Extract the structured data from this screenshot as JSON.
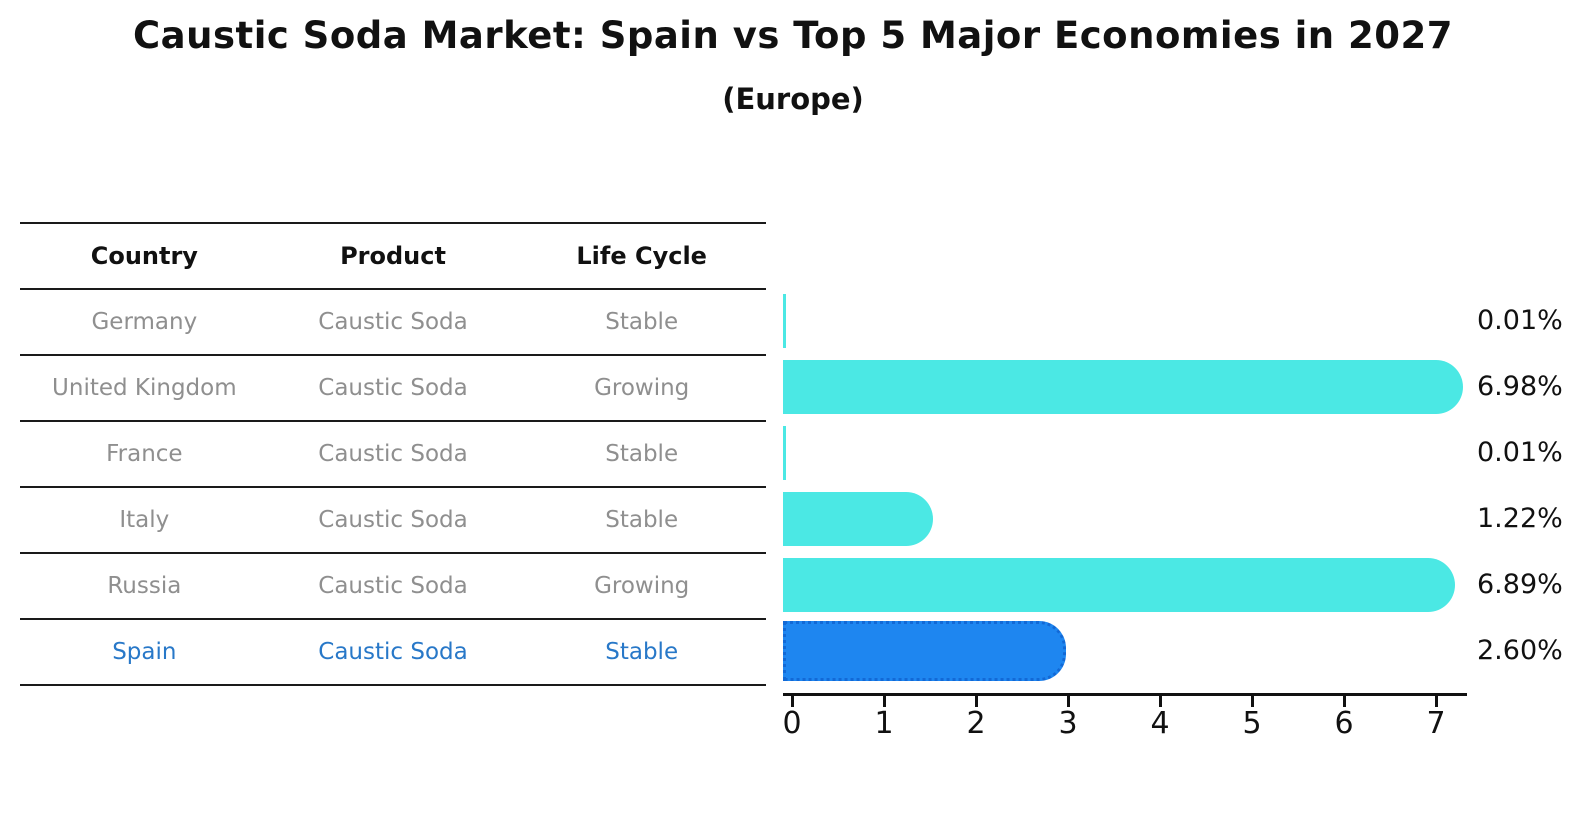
{
  "title": "Caustic Soda Market: Spain vs Top 5 Major Economies in 2027",
  "subtitle": "(Europe)",
  "table": {
    "headers": [
      "Country",
      "Product",
      "Life Cycle"
    ],
    "rows": [
      {
        "country": "Germany",
        "product": "Caustic Soda",
        "life_cycle": "Stable",
        "highlight": false
      },
      {
        "country": "United Kingdom",
        "product": "Caustic Soda",
        "life_cycle": "Growing",
        "highlight": false
      },
      {
        "country": "France",
        "product": "Caustic Soda",
        "life_cycle": "Stable",
        "highlight": false
      },
      {
        "country": "Italy",
        "product": "Caustic Soda",
        "life_cycle": "Stable",
        "highlight": false
      },
      {
        "country": "Russia",
        "product": "Caustic Soda",
        "life_cycle": "Growing",
        "highlight": false
      },
      {
        "country": "Spain",
        "product": "Caustic Soda",
        "life_cycle": "Stable",
        "highlight": true
      }
    ]
  },
  "chart_data": {
    "type": "bar",
    "orientation": "horizontal",
    "categories": [
      "Germany",
      "United Kingdom",
      "France",
      "Italy",
      "Russia",
      "Spain"
    ],
    "values": [
      0.01,
      6.98,
      0.01,
      1.22,
      6.89,
      2.6
    ],
    "value_labels": [
      "0.01%",
      "6.98%",
      "0.01%",
      "1.22%",
      "6.89%",
      "2.60%"
    ],
    "x_ticks": [
      "0",
      "1",
      "2",
      "3",
      "4",
      "5",
      "6",
      "7"
    ],
    "xlim": [
      0,
      7.35
    ],
    "grid": false,
    "legend": "none",
    "highlight_category": "Spain",
    "colors": {
      "bar": "#4be8e4",
      "highlight_bar": "#1e86f0",
      "highlight_border": "#1269d6",
      "table_text": "#8f8f8f",
      "highlight_text": "#2878c8",
      "axis": "#111111"
    }
  }
}
